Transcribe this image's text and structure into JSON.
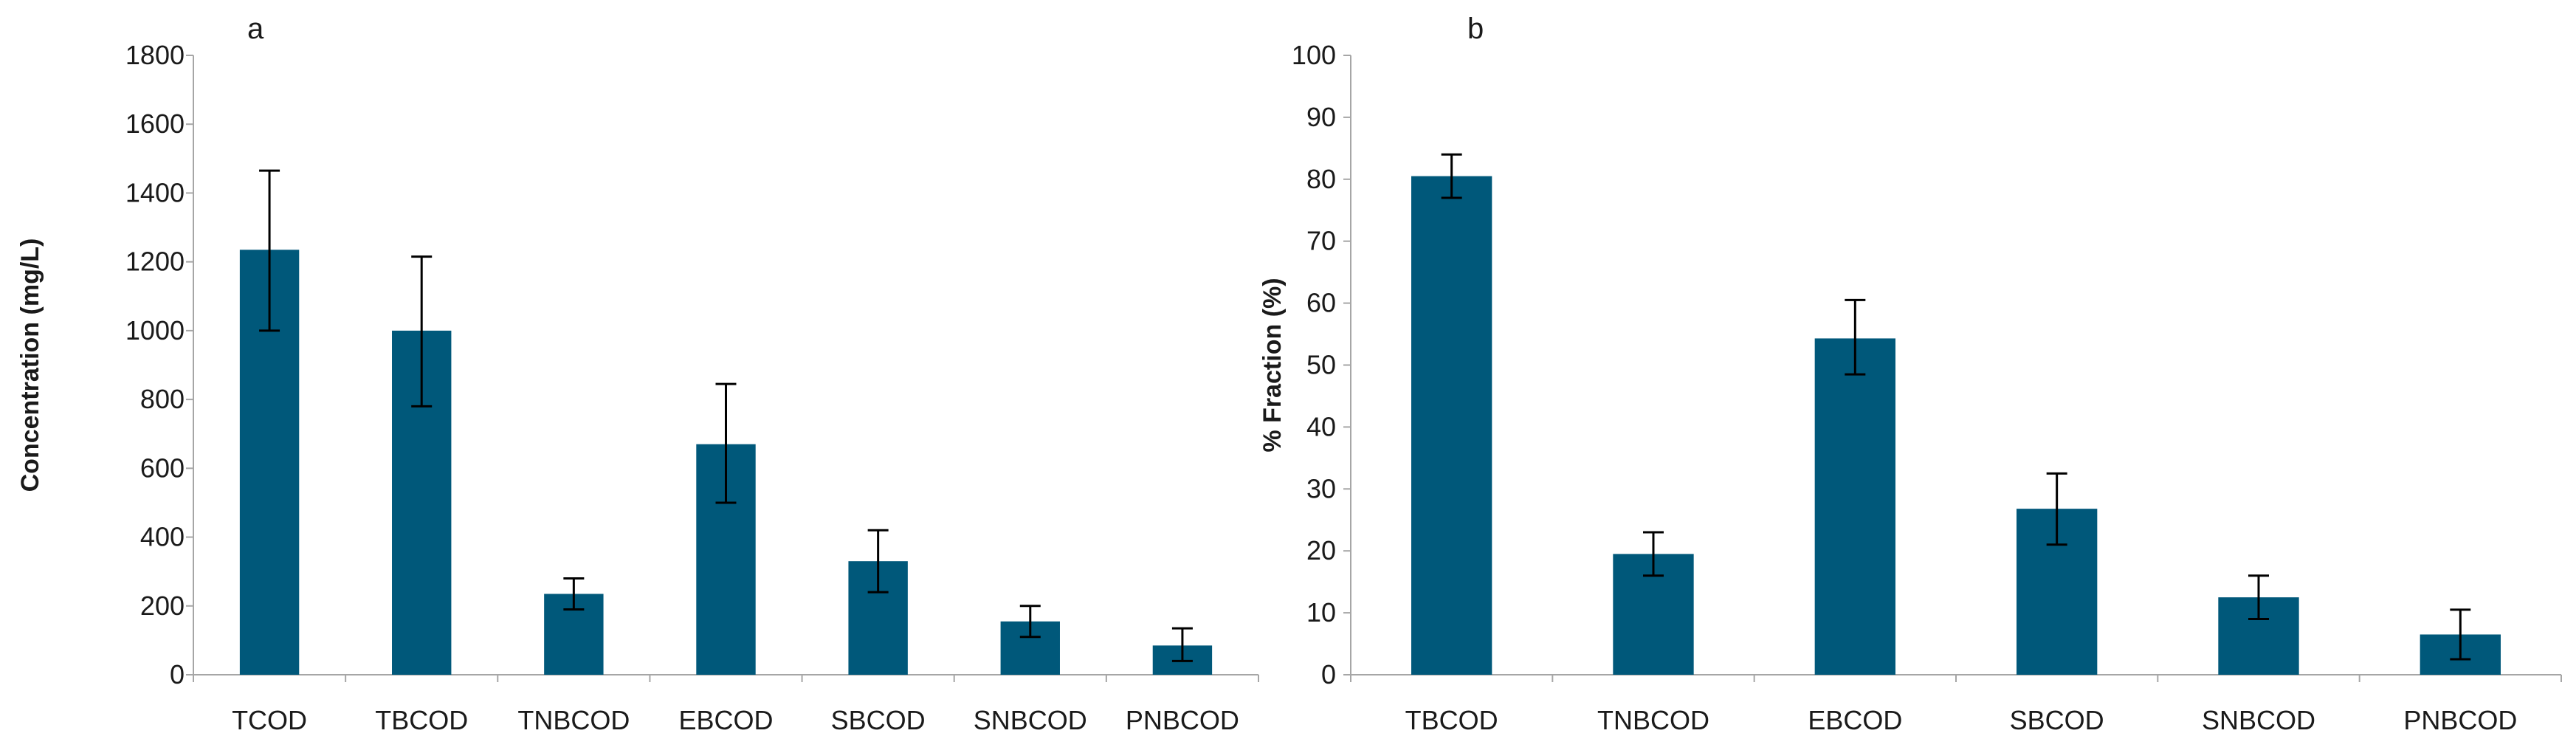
{
  "colors": {
    "bar": "#00587a",
    "axis": "#a6a6a6",
    "error": "#000000"
  },
  "chart_data": [
    {
      "type": "bar",
      "title": "a",
      "ylabel": "Concentration (mg/L)",
      "xlabel": "",
      "ylim": [
        0,
        1800
      ],
      "yticks": [
        0,
        200,
        400,
        600,
        800,
        1000,
        1200,
        1400,
        1600,
        1800
      ],
      "categories": [
        "TCOD",
        "TBCOD",
        "TNBCOD",
        "EBCOD",
        "SBCOD",
        "SNBCOD",
        "PNBCOD"
      ],
      "values": [
        1235,
        1000,
        235,
        670,
        330,
        155,
        85
      ],
      "error_low": [
        1000,
        780,
        190,
        500,
        240,
        110,
        40
      ],
      "error_high": [
        1465,
        1215,
        280,
        845,
        420,
        200,
        135
      ]
    },
    {
      "type": "bar",
      "title": "b",
      "ylabel": "% Fraction (%)",
      "xlabel": "",
      "ylim": [
        0,
        100
      ],
      "yticks": [
        0,
        10,
        20,
        30,
        40,
        50,
        60,
        70,
        80,
        90,
        100
      ],
      "categories": [
        "TBCOD",
        "TNBCOD",
        "EBCOD",
        "SBCOD",
        "SNBCOD",
        "PNBCOD"
      ],
      "values": [
        80.5,
        19.5,
        54.3,
        26.8,
        12.5,
        6.5
      ],
      "error_low": [
        77,
        16,
        48.5,
        21,
        9,
        2.5
      ],
      "error_high": [
        84,
        23,
        60.5,
        32.5,
        16,
        10.5
      ]
    }
  ]
}
